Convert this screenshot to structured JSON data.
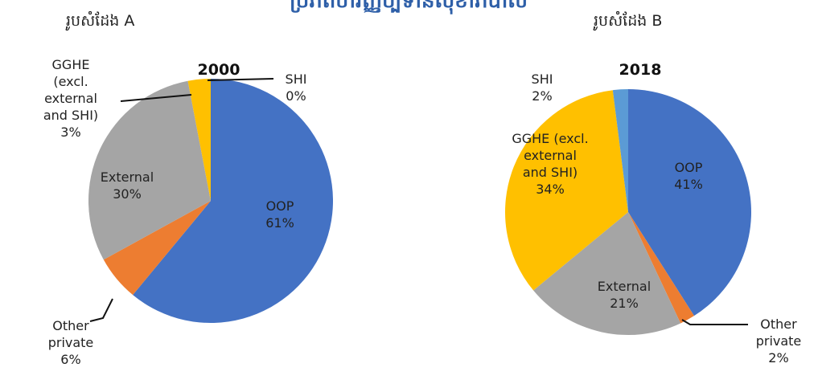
{
  "title": "ប្រភពហិរញ្ញប្បទានសុខាភិបាល",
  "chart_data": [
    {
      "type": "pie",
      "subtitle": "រូបសំដែង A",
      "title": "2000",
      "categories": [
        "OOP",
        "Other private",
        "External",
        "GGHE (excl. external and SHI)",
        "SHI"
      ],
      "values": [
        61,
        6,
        30,
        3,
        0
      ],
      "value_labels": [
        "61%",
        "6%",
        "30%",
        "3%",
        "0%"
      ],
      "colors": [
        "#4472c4",
        "#ed7d31",
        "#a5a5a5",
        "#ffc000",
        "#5b9bd5"
      ]
    },
    {
      "type": "pie",
      "subtitle": "រូបសំដែង B",
      "title": "2018",
      "categories": [
        "OOP",
        "Other private",
        "External",
        "GGHE (excl. external and SHI)",
        "SHI"
      ],
      "values": [
        41,
        2,
        21,
        34,
        2
      ],
      "value_labels": [
        "41%",
        "2%",
        "21%",
        "34%",
        "2%"
      ],
      "colors": [
        "#4472c4",
        "#ed7d31",
        "#a5a5a5",
        "#ffc000",
        "#5b9bd5"
      ]
    }
  ]
}
